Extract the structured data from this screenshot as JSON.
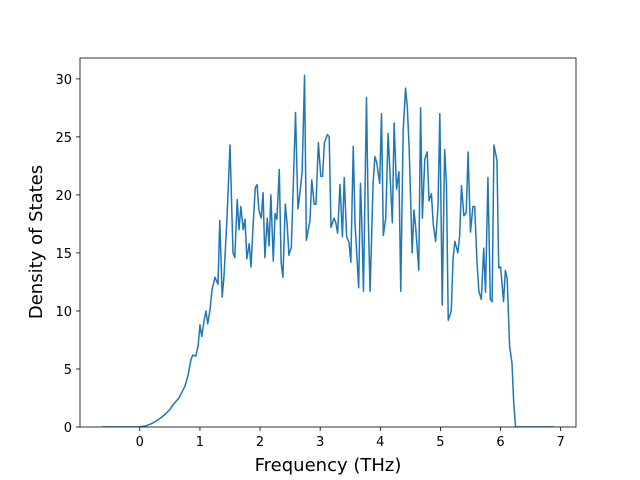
{
  "chart_data": {
    "type": "line",
    "xlabel": "Frequency (THz)",
    "ylabel": "Density of States",
    "xlim": [
      -0.995,
      7.255
    ],
    "ylim": [
      0,
      31.8
    ],
    "xticks": [
      0,
      1,
      2,
      3,
      4,
      5,
      6,
      7
    ],
    "yticks": [
      0,
      5,
      10,
      15,
      20,
      25,
      30
    ],
    "grid": false,
    "series": [
      {
        "color": "#1f77b4",
        "x": [
          -0.62,
          0,
          0.1,
          0.2,
          0.3,
          0.4,
          0.5,
          0.55,
          0.6,
          0.65,
          0.7,
          0.75,
          0.8,
          0.85,
          0.88,
          0.93,
          0.97,
          1.0,
          1.03,
          1.07,
          1.1,
          1.13,
          1.17,
          1.2,
          1.25,
          1.3,
          1.33,
          1.37,
          1.4,
          1.45,
          1.5,
          1.55,
          1.58,
          1.62,
          1.65,
          1.68,
          1.72,
          1.75,
          1.78,
          1.82,
          1.85,
          1.88,
          1.92,
          1.95,
          1.98,
          2.02,
          2.05,
          2.08,
          2.12,
          2.15,
          2.18,
          2.22,
          2.25,
          2.28,
          2.32,
          2.35,
          2.38,
          2.42,
          2.45,
          2.48,
          2.52,
          2.59,
          2.63,
          2.66,
          2.7,
          2.74,
          2.77,
          2.83,
          2.86,
          2.9,
          2.93,
          2.97,
          3.01,
          3.04,
          3.07,
          3.12,
          3.15,
          3.18,
          3.23,
          3.26,
          3.29,
          3.33,
          3.37,
          3.4,
          3.44,
          3.48,
          3.51,
          3.55,
          3.58,
          3.64,
          3.67,
          3.69,
          3.72,
          3.77,
          3.8,
          3.83,
          3.88,
          3.91,
          3.94,
          3.99,
          4.02,
          4.05,
          4.09,
          4.13,
          4.16,
          4.2,
          4.23,
          4.27,
          4.31,
          4.34,
          4.38,
          4.42,
          4.45,
          4.48,
          4.53,
          4.56,
          4.59,
          4.64,
          4.67,
          4.7,
          4.74,
          4.78,
          4.81,
          4.85,
          4.88,
          4.92,
          4.96,
          4.99,
          5.03,
          5.07,
          5.1,
          5.13,
          5.18,
          5.21,
          5.24,
          5.29,
          5.32,
          5.35,
          5.39,
          5.43,
          5.46,
          5.5,
          5.54,
          5.57,
          5.61,
          5.64,
          5.68,
          5.72,
          5.75,
          5.79,
          5.83,
          5.86,
          5.89,
          5.94,
          5.97,
          6.0,
          6.05,
          6.08,
          6.11,
          6.15,
          6.19,
          6.22,
          6.25,
          6.88
        ],
        "values": [
          0,
          0,
          0.1,
          0.3,
          0.6,
          1.0,
          1.5,
          1.9,
          2.2,
          2.5,
          3.0,
          3.5,
          4.4,
          5.8,
          6.2,
          6.1,
          7.0,
          8.8,
          7.8,
          9.2,
          10.0,
          8.9,
          10.2,
          11.8,
          12.9,
          12.3,
          17.8,
          11.2,
          13.0,
          18.0,
          24.3,
          15.0,
          14.6,
          19.6,
          17.0,
          19.0,
          17.0,
          17.9,
          14.5,
          15.8,
          13.8,
          17.0,
          20.6,
          20.9,
          18.7,
          18.0,
          20.2,
          14.6,
          18.0,
          15.6,
          20.0,
          14.3,
          18.4,
          17.9,
          22.2,
          14.2,
          12.9,
          19.2,
          17.5,
          14.8,
          15.5,
          27.1,
          18.8,
          20.0,
          22.0,
          30.3,
          16.1,
          17.8,
          21.3,
          19.2,
          19.2,
          24.5,
          21.6,
          21.6,
          24.5,
          25.2,
          25.0,
          17.2,
          18.0,
          17.6,
          16.7,
          20.9,
          16.4,
          21.5,
          16.4,
          15.9,
          14.2,
          24.2,
          17.5,
          12.0,
          21.0,
          18.0,
          11.7,
          28.4,
          18.0,
          11.7,
          21.0,
          23.3,
          22.8,
          21.0,
          27.0,
          16.5,
          18.0,
          25.3,
          22.0,
          17.6,
          26.2,
          20.5,
          22.0,
          11.7,
          25.5,
          29.2,
          27.5,
          24.0,
          15.0,
          18.7,
          17.1,
          13.5,
          27.5,
          18.0,
          23.1,
          23.7,
          19.5,
          20.1,
          17.5,
          16.0,
          19.0,
          27.0,
          10.5,
          23.9,
          21.0,
          9.2,
          10.0,
          14.5,
          16.0,
          15.0,
          16.5,
          20.8,
          18.2,
          18.5,
          23.7,
          16.8,
          19.0,
          19.0,
          14.0,
          11.7,
          11.0,
          15.4,
          11.6,
          21.5,
          11.0,
          10.8,
          24.3,
          23.0,
          13.7,
          13.8,
          10.8,
          13.5,
          12.8,
          7.0,
          5.5,
          2.0,
          0,
          0
        ]
      }
    ]
  }
}
